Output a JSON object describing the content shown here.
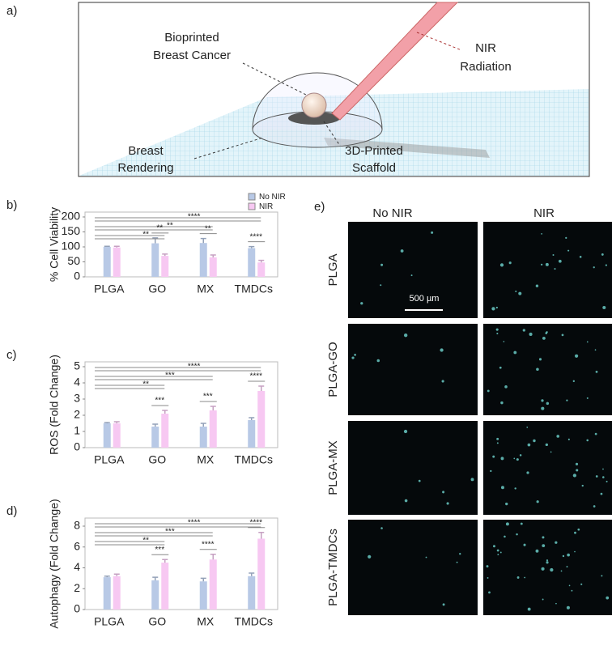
{
  "panel_a": {
    "label": "a)",
    "annotations": [
      "Bioprinted",
      "Breast Cancer",
      "NIR",
      "Radiation",
      "Breast",
      "Rendering",
      "3D-Printed",
      "Scaffold"
    ]
  },
  "panel_e": {
    "label": "e)",
    "columns": [
      "No NIR",
      "NIR"
    ],
    "rows": [
      "PLGA",
      "PLGA-GO",
      "PLGA-MX",
      "PLGA-TMDCs"
    ],
    "scale_bar": "500 µm"
  },
  "chart_data": [
    {
      "type": "bar",
      "panel": "b)",
      "ylabel": "% Cell Viability",
      "categories": [
        "PLGA",
        "GO",
        "MX",
        "TMDCs"
      ],
      "series": [
        {
          "name": "No NIR",
          "color": "#b8c9e6",
          "values": [
            100,
            112,
            113,
            96
          ],
          "errors": [
            2,
            18,
            15,
            5
          ]
        },
        {
          "name": "NIR",
          "color": "#f7c8f2",
          "values": [
            98,
            70,
            65,
            48
          ],
          "errors": [
            4,
            6,
            8,
            7
          ]
        }
      ],
      "ylim": [
        0,
        200
      ],
      "yticks": [
        0,
        50,
        100,
        150,
        200
      ],
      "significance": [
        {
          "span": [
            "PLGA",
            "TMDCs"
          ],
          "label": "****"
        },
        {
          "span": [
            "PLGA",
            "MX"
          ],
          "label": "**"
        },
        {
          "span": [
            "PLGA",
            "GO"
          ],
          "label": "**"
        },
        {
          "span": [
            "GO",
            "GO"
          ],
          "label": "**"
        },
        {
          "span": [
            "MX",
            "MX"
          ],
          "label": "**"
        },
        {
          "span": [
            "TMDCs",
            "TMDCs"
          ],
          "label": "****"
        }
      ]
    },
    {
      "type": "bar",
      "panel": "c)",
      "ylabel": "ROS (Fold Change)",
      "categories": [
        "PLGA",
        "GO",
        "MX",
        "TMDCs"
      ],
      "series": [
        {
          "name": "No NIR",
          "color": "#b8c9e6",
          "values": [
            1.5,
            1.3,
            1.3,
            1.7
          ],
          "errors": [
            0.05,
            0.15,
            0.2,
            0.15
          ]
        },
        {
          "name": "NIR",
          "color": "#f7c8f2",
          "values": [
            1.5,
            2.1,
            2.3,
            3.5
          ],
          "errors": [
            0.1,
            0.2,
            0.25,
            0.3
          ]
        }
      ],
      "ylim": [
        0,
        5
      ],
      "yticks": [
        0,
        1,
        2,
        3,
        4,
        5
      ],
      "significance": [
        {
          "span": [
            "PLGA",
            "TMDCs"
          ],
          "label": "****"
        },
        {
          "span": [
            "PLGA",
            "MX"
          ],
          "label": "***"
        },
        {
          "span": [
            "PLGA",
            "GO"
          ],
          "label": "**"
        },
        {
          "span": [
            "GO",
            "GO"
          ],
          "label": "***"
        },
        {
          "span": [
            "MX",
            "MX"
          ],
          "label": "***"
        },
        {
          "span": [
            "TMDCs",
            "TMDCs"
          ],
          "label": "****"
        }
      ]
    },
    {
      "type": "bar",
      "panel": "d)",
      "ylabel": "Autophagy (Fold Change)",
      "categories": [
        "PLGA",
        "GO",
        "MX",
        "TMDCs"
      ],
      "series": [
        {
          "name": "No NIR",
          "color": "#b8c9e6",
          "values": [
            3.1,
            2.8,
            2.7,
            3.2
          ],
          "errors": [
            0.1,
            0.3,
            0.3,
            0.3
          ]
        },
        {
          "name": "NIR",
          "color": "#f7c8f2",
          "values": [
            3.2,
            4.5,
            4.8,
            6.8
          ],
          "errors": [
            0.2,
            0.3,
            0.5,
            0.6
          ]
        }
      ],
      "ylim": [
        0,
        8
      ],
      "yticks": [
        0,
        2,
        4,
        6,
        8
      ],
      "significance": [
        {
          "span": [
            "PLGA",
            "TMDCs"
          ],
          "label": "****"
        },
        {
          "span": [
            "PLGA",
            "MX"
          ],
          "label": "***"
        },
        {
          "span": [
            "PLGA",
            "GO"
          ],
          "label": "**"
        },
        {
          "span": [
            "GO",
            "GO"
          ],
          "label": "***"
        },
        {
          "span": [
            "MX",
            "MX"
          ],
          "label": "****"
        },
        {
          "span": [
            "TMDCs",
            "TMDCs"
          ],
          "label": "****"
        }
      ]
    }
  ]
}
